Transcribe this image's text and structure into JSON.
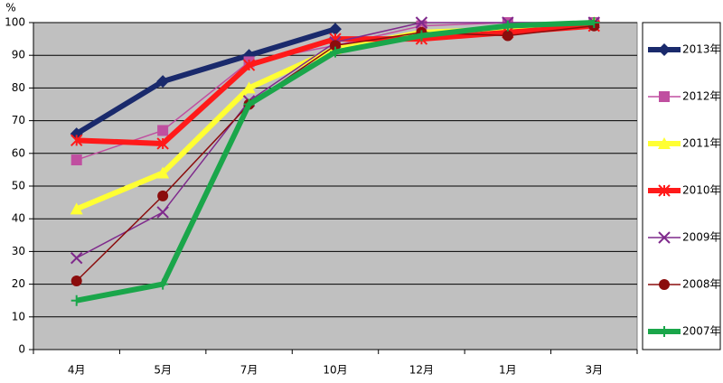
{
  "chart_data": {
    "type": "line",
    "y_label": "%",
    "categories": [
      "4月",
      "5月",
      "7月",
      "10月",
      "12月",
      "1月",
      "3月"
    ],
    "series": [
      {
        "name": "2013年",
        "color": "#1a2a6c",
        "marker": "diamond",
        "line_width": 6,
        "values": [
          66,
          82,
          90,
          98,
          null,
          null,
          null
        ]
      },
      {
        "name": "2012年",
        "color": "#c04fa0",
        "marker": "square",
        "line_width": 1.5,
        "values": [
          58,
          67,
          88,
          93,
          99,
          100,
          100
        ]
      },
      {
        "name": "2011年",
        "color": "#ffff33",
        "marker": "triangle",
        "line_width": 6,
        "values": [
          43,
          54,
          80,
          92,
          97,
          98,
          100
        ]
      },
      {
        "name": "2010年",
        "color": "#ff1a1a",
        "marker": "asterisk",
        "line_width": 6,
        "values": [
          64,
          63,
          87,
          95,
          95,
          97,
          99
        ]
      },
      {
        "name": "2009年",
        "color": "#7f2a8c",
        "marker": "cross",
        "line_width": 1.5,
        "values": [
          28,
          42,
          76,
          94,
          100,
          100,
          100
        ]
      },
      {
        "name": "2008年",
        "color": "#8b0d0d",
        "marker": "circle",
        "line_width": 1.5,
        "values": [
          21,
          47,
          75,
          93,
          97,
          96,
          99
        ]
      },
      {
        "name": "2007年",
        "color": "#1aa64a",
        "marker": "plus",
        "line_width": 6,
        "values": [
          15,
          20,
          75,
          91,
          96,
          99,
          100
        ]
      }
    ],
    "ylim": [
      0,
      100
    ],
    "yticks": [
      0,
      10,
      20,
      30,
      40,
      50,
      60,
      70,
      80,
      90,
      100
    ],
    "grid": true
  }
}
